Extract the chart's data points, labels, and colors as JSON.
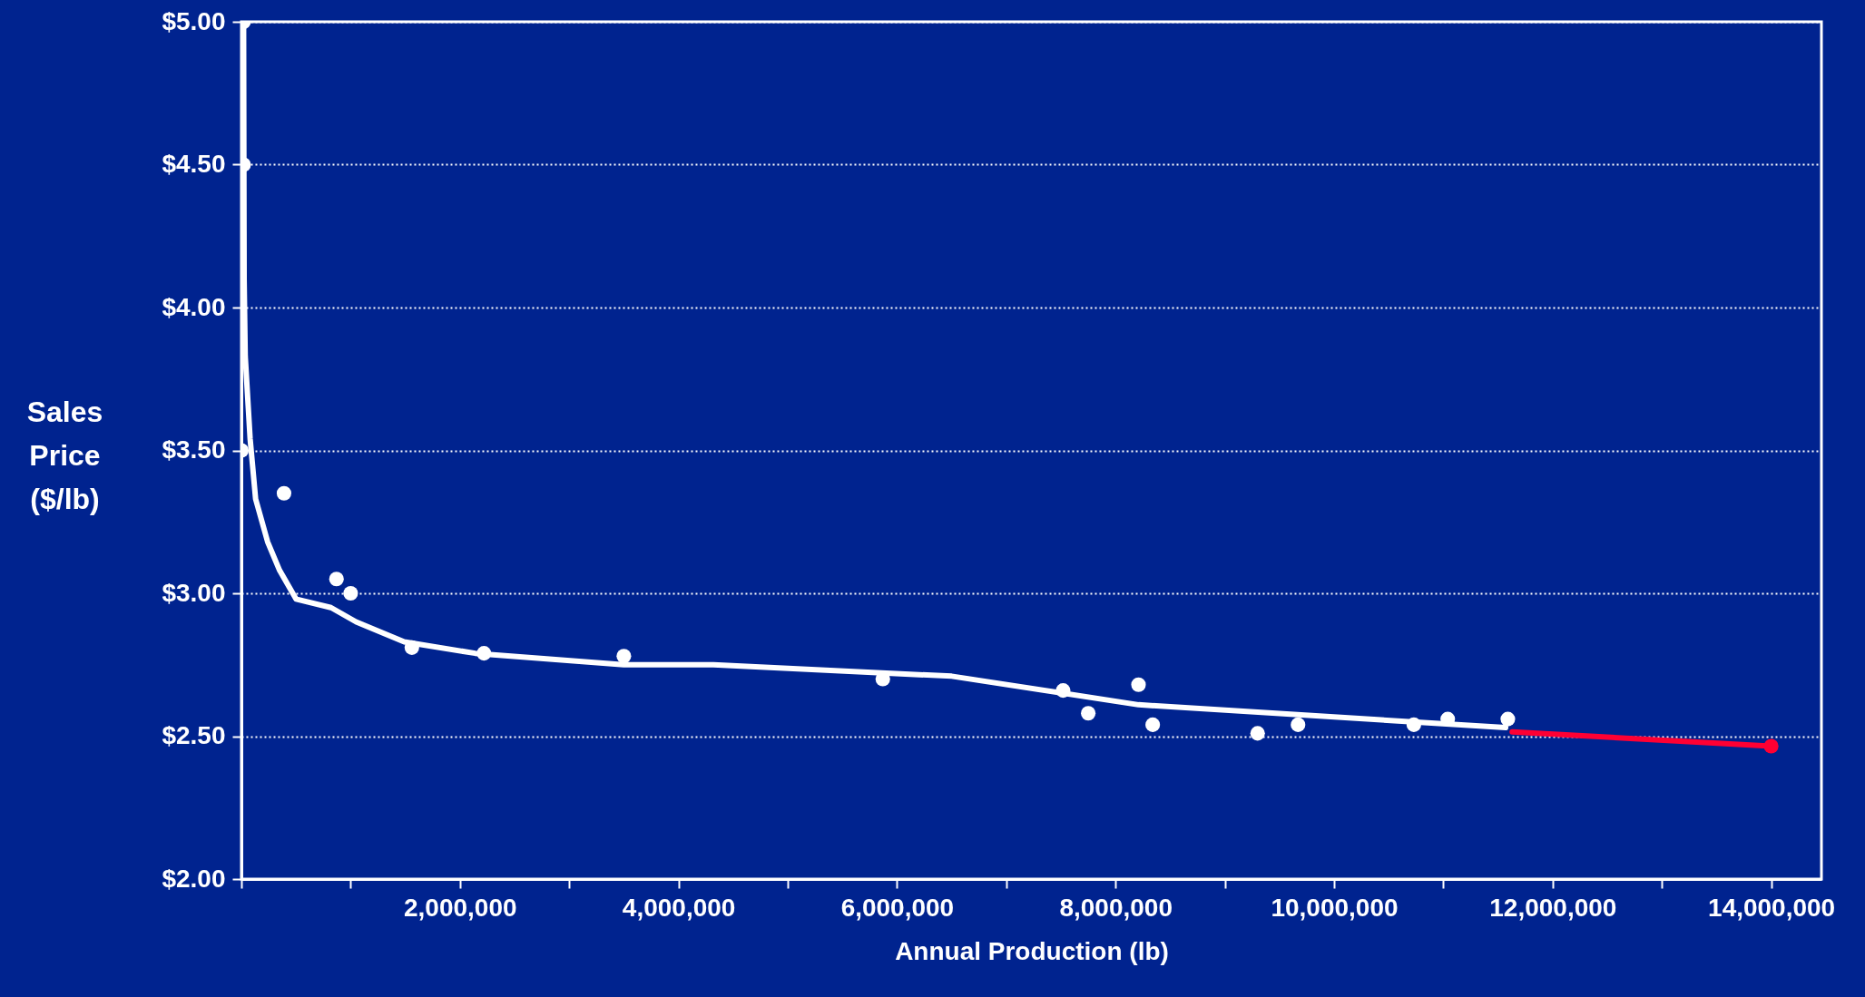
{
  "chart_data": {
    "type": "scatter",
    "xlabel": "Annual Production (lb)",
    "ylabel": "Sales\nPrice\n($/lb)",
    "xlim": [
      0,
      14460000
    ],
    "ylim": [
      2,
      5
    ],
    "xticks": [
      {
        "value": 0,
        "label": null
      },
      {
        "value": 1000000,
        "label": null
      },
      {
        "value": 2000000,
        "label": "2,000,000"
      },
      {
        "value": 3000000,
        "label": null
      },
      {
        "value": 4000000,
        "label": "4,000,000"
      },
      {
        "value": 5000000,
        "label": null
      },
      {
        "value": 6000000,
        "label": "6,000,000"
      },
      {
        "value": 7000000,
        "label": null
      },
      {
        "value": 8000000,
        "label": "8,000,000"
      },
      {
        "value": 9000000,
        "label": null
      },
      {
        "value": 10000000,
        "label": "10,000,000"
      },
      {
        "value": 11000000,
        "label": null
      },
      {
        "value": 12000000,
        "label": "12,000,000"
      },
      {
        "value": 13000000,
        "label": null
      },
      {
        "value": 14000000,
        "label": "14,000,000"
      }
    ],
    "yticks": [
      {
        "value": 2,
        "label": "$2.00"
      },
      {
        "value": 2.5,
        "label": "$2.50"
      },
      {
        "value": 3,
        "label": "$3.00"
      },
      {
        "value": 3.5,
        "label": "$3.50"
      },
      {
        "value": 4,
        "label": "$4.00"
      },
      {
        "value": 4.5,
        "label": "$4.50"
      },
      {
        "value": 5,
        "label": "$5.00"
      }
    ],
    "grid": "y",
    "series": [
      {
        "type": "line",
        "color": "#ffffff",
        "x": [
          20000,
          25000,
          35000,
          80000,
          130000,
          240000,
          350000,
          500000,
          820000,
          1050000,
          1490000,
          2140000,
          3500000,
          4320000,
          6500000,
          8210000,
          11570000
        ],
        "values": [
          5.0,
          4.1,
          3.83,
          3.54,
          3.33,
          3.18,
          3.08,
          2.98,
          2.95,
          2.9,
          2.83,
          2.79,
          2.75,
          2.75,
          2.71,
          2.61,
          2.53
        ]
      },
      {
        "type": "line",
        "color": "#ff0033",
        "x": [
          11630000,
          14000000
        ],
        "values": [
          2.515,
          2.465
        ]
      },
      {
        "color": "#ffffff",
        "x": [
          20000,
          20000,
          0,
          390000,
          870000,
          1000000,
          1560000,
          2220000,
          3500000,
          5870000,
          7520000,
          7750000,
          8210000,
          8340000,
          9300000,
          9670000,
          10730000,
          11040000,
          11590000
        ],
        "values": [
          5.0,
          4.5,
          3.5,
          3.35,
          3.05,
          3.0,
          2.81,
          2.79,
          2.78,
          2.7,
          2.66,
          2.58,
          2.68,
          2.54,
          2.51,
          2.54,
          2.54,
          2.56,
          2.56
        ]
      },
      {
        "color": "#ff0033",
        "x": [
          14000000
        ],
        "values": [
          2.465
        ]
      }
    ]
  }
}
